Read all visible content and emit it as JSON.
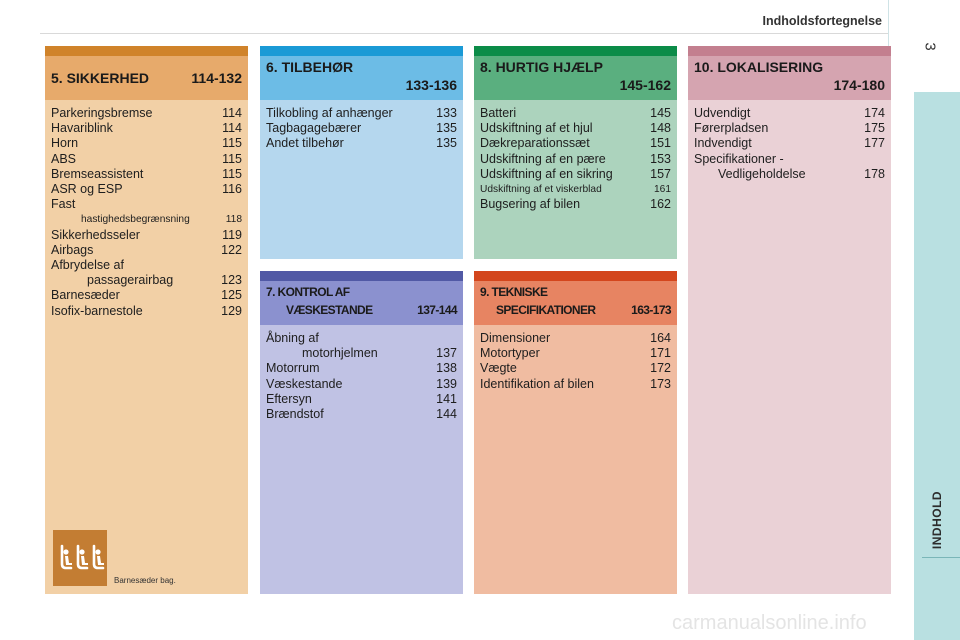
{
  "header": {
    "title": "Indholdsfortegnelse",
    "page_number": "3",
    "side_label": "INDHOLD"
  },
  "sections": {
    "s5": {
      "title": "5. SIKKERHED",
      "pages": "114-132",
      "items": [
        {
          "label": "Parkeringsbremse",
          "page": "114"
        },
        {
          "label": "Havariblink",
          "page": "114"
        },
        {
          "label": "Horn",
          "page": "115"
        },
        {
          "label": "ABS",
          "page": "115"
        },
        {
          "label": "Bremseassistent",
          "page": "115"
        },
        {
          "label": "ASR og ESP",
          "page": "116"
        },
        {
          "label": "Fast",
          "page": ""
        },
        {
          "label": "hastighedsbegrænsning",
          "page": "118"
        },
        {
          "label": "Sikkerhedsseler",
          "page": "119"
        },
        {
          "label": "Airbags",
          "page": "122"
        },
        {
          "label": "Afbrydelse af",
          "page": ""
        },
        {
          "label": "passagerairbag",
          "page": "123"
        },
        {
          "label": "Barnesæder",
          "page": "125"
        },
        {
          "label": "Isofix-barnestole",
          "page": "129"
        }
      ],
      "caption": "Barnesæder bag.",
      "icon": "child-seats-icon"
    },
    "s6": {
      "title": "6. TILBEHØR",
      "pages": "133-136",
      "items": [
        {
          "label": "Tilkobling af anhænger",
          "page": "133"
        },
        {
          "label": "Tagbagagebærer",
          "page": "135"
        },
        {
          "label": "Andet tilbehør",
          "page": "135"
        }
      ]
    },
    "s7": {
      "title": "7. KONTROL AF",
      "title2": "VÆSKESTANDE",
      "pages": "137-144",
      "items": [
        {
          "label": "Åbning af",
          "page": ""
        },
        {
          "label": "motorhjelmen",
          "page": "137"
        },
        {
          "label": "Motorrum",
          "page": "138"
        },
        {
          "label": "Væskestande",
          "page": "139"
        },
        {
          "label": "Eftersyn",
          "page": "141"
        },
        {
          "label": "Brændstof",
          "page": "144"
        }
      ]
    },
    "s8": {
      "title": "8. HURTIG HJÆLP",
      "pages": "145-162",
      "items": [
        {
          "label": "Batteri",
          "page": "145"
        },
        {
          "label": "Udskiftning af et hjul",
          "page": "148"
        },
        {
          "label": "Dækreparationssæt",
          "page": "151"
        },
        {
          "label": "Udskiftning af en pære",
          "page": "153"
        },
        {
          "label": "Udskiftning af en sikring",
          "page": "157"
        },
        {
          "label": "Udskiftning af et viskerblad",
          "page": "161"
        },
        {
          "label": "Bugsering af bilen",
          "page": "162"
        }
      ]
    },
    "s9": {
      "title": "9. TEKNISKE",
      "title2": "SPECIFIKATIONER",
      "pages": "163-173",
      "items": [
        {
          "label": "Dimensioner",
          "page": "164"
        },
        {
          "label": "Motortyper",
          "page": "171"
        },
        {
          "label": "Vægte",
          "page": "172"
        },
        {
          "label": "Identifikation af bilen",
          "page": "173"
        }
      ]
    },
    "s10": {
      "title": "10. LOKALISERING",
      "pages": "174-180",
      "items": [
        {
          "label": "Udvendigt",
          "page": "174"
        },
        {
          "label": "Førerpladsen",
          "page": "175"
        },
        {
          "label": "Indvendigt",
          "page": "177"
        },
        {
          "label": "Specifikationer -",
          "page": ""
        },
        {
          "label": "Vedligeholdelse",
          "page": "178"
        }
      ]
    }
  },
  "watermark": "carmanualsonline.info",
  "colors": {
    "sikkerhed": "#e7aa6b",
    "tilbehor": "#6cbce6",
    "kontrol": "#8b91cf",
    "hurtig_hjaelp": "#5aaf7f",
    "tekniske": "#e78462",
    "lokalisering": "#d5a4b0",
    "side_tab": "#b9e0e1"
  }
}
